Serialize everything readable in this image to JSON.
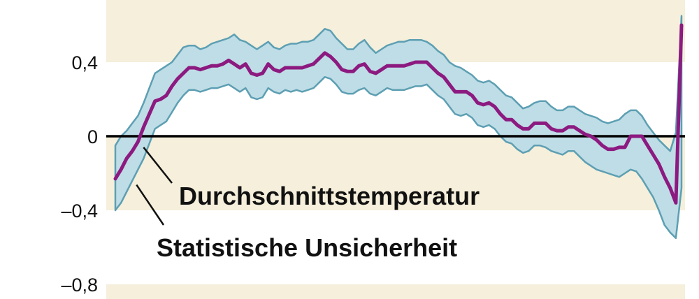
{
  "chart_data": {
    "type": "area",
    "title": "",
    "xlabel": "",
    "ylabel": "",
    "ylim": [
      -0.8,
      0.8
    ],
    "yticks": [
      {
        "value": 0.4,
        "label": "0,4"
      },
      {
        "value": 0,
        "label": "0"
      },
      {
        "value": -0.4,
        "label": "–0,4"
      },
      {
        "value": -0.8,
        "label": "–0,8"
      }
    ],
    "colors": {
      "band_shade": "#f5efdb",
      "uncertainty_fill": "#bfdde6",
      "uncertainty_edge": "#5d9fb3",
      "mean_line": "#8c1a80",
      "zero_line": "#000000"
    },
    "annotations": [
      {
        "id": "mean",
        "text": "Durchschnittstemperatur",
        "points_to": "mean_line"
      },
      {
        "id": "band",
        "text": "Statistische Unsicherheit",
        "points_to": "uncertainty_band"
      }
    ],
    "x": [
      0,
      1,
      2,
      3,
      4,
      5,
      6,
      7,
      8,
      9,
      10,
      11,
      12,
      13,
      14,
      15,
      16,
      17,
      18,
      19,
      20,
      21,
      22,
      23,
      24,
      25,
      26,
      27,
      28,
      29,
      30,
      31,
      32,
      33,
      34,
      35,
      36,
      37,
      38,
      39,
      40,
      41,
      42,
      43,
      44,
      45,
      46,
      47,
      48,
      49,
      50,
      51,
      52,
      53,
      54,
      55,
      56,
      57,
      58,
      59,
      60,
      61,
      62,
      63,
      64,
      65,
      66,
      67,
      68,
      69,
      70,
      71,
      72,
      73,
      74,
      75,
      76,
      77,
      78,
      79,
      80,
      81,
      82,
      83,
      84,
      85,
      86,
      87,
      88,
      89,
      90,
      91,
      92,
      93,
      94,
      95,
      96,
      97,
      98,
      99,
      100
    ],
    "series": [
      {
        "id": "mean",
        "values": [
          -0.23,
          -0.18,
          -0.12,
          -0.08,
          -0.03,
          0.05,
          0.12,
          0.19,
          0.2,
          0.22,
          0.27,
          0.31,
          0.34,
          0.37,
          0.37,
          0.36,
          0.37,
          0.38,
          0.38,
          0.39,
          0.41,
          0.39,
          0.37,
          0.39,
          0.34,
          0.33,
          0.34,
          0.39,
          0.36,
          0.35,
          0.37,
          0.37,
          0.37,
          0.37,
          0.38,
          0.39,
          0.42,
          0.45,
          0.43,
          0.4,
          0.36,
          0.35,
          0.35,
          0.38,
          0.39,
          0.35,
          0.34,
          0.36,
          0.38,
          0.38,
          0.38,
          0.38,
          0.39,
          0.4,
          0.4,
          0.4,
          0.37,
          0.34,
          0.32,
          0.28,
          0.24,
          0.24,
          0.24,
          0.22,
          0.18,
          0.17,
          0.18,
          0.16,
          0.12,
          0.09,
          0.09,
          0.06,
          0.04,
          0.04,
          0.07,
          0.07,
          0.07,
          0.04,
          0.03,
          0.03,
          0.05,
          0.05,
          0.03,
          0.01,
          0.0,
          -0.02,
          -0.05,
          -0.07,
          -0.07,
          -0.06,
          -0.06,
          0.0,
          0.0,
          0.0,
          -0.05,
          -0.1,
          -0.15,
          -0.22,
          -0.28,
          -0.36,
          0.6
        ]
      },
      {
        "id": "upper",
        "values": [
          -0.05,
          0.0,
          0.03,
          0.07,
          0.11,
          0.18,
          0.26,
          0.34,
          0.36,
          0.38,
          0.4,
          0.44,
          0.48,
          0.49,
          0.49,
          0.47,
          0.48,
          0.5,
          0.51,
          0.52,
          0.53,
          0.55,
          0.52,
          0.51,
          0.49,
          0.47,
          0.49,
          0.51,
          0.48,
          0.47,
          0.49,
          0.5,
          0.5,
          0.51,
          0.51,
          0.52,
          0.55,
          0.58,
          0.57,
          0.53,
          0.5,
          0.47,
          0.47,
          0.5,
          0.52,
          0.48,
          0.45,
          0.47,
          0.49,
          0.5,
          0.51,
          0.51,
          0.52,
          0.52,
          0.52,
          0.51,
          0.49,
          0.46,
          0.44,
          0.4,
          0.38,
          0.37,
          0.35,
          0.33,
          0.3,
          0.29,
          0.3,
          0.28,
          0.25,
          0.22,
          0.21,
          0.18,
          0.15,
          0.16,
          0.18,
          0.19,
          0.19,
          0.16,
          0.14,
          0.14,
          0.16,
          0.16,
          0.14,
          0.12,
          0.11,
          0.1,
          0.08,
          0.07,
          0.08,
          0.09,
          0.12,
          0.14,
          0.14,
          0.11,
          0.06,
          0.02,
          -0.02,
          -0.05,
          -0.08,
          0.02,
          0.65
        ]
      },
      {
        "id": "lower",
        "values": [
          -0.4,
          -0.36,
          -0.3,
          -0.24,
          -0.18,
          -0.12,
          -0.04,
          0.04,
          0.06,
          0.08,
          0.13,
          0.18,
          0.22,
          0.25,
          0.25,
          0.24,
          0.25,
          0.26,
          0.26,
          0.27,
          0.28,
          0.26,
          0.24,
          0.26,
          0.21,
          0.2,
          0.21,
          0.26,
          0.24,
          0.23,
          0.25,
          0.24,
          0.25,
          0.24,
          0.25,
          0.26,
          0.29,
          0.32,
          0.31,
          0.28,
          0.24,
          0.23,
          0.23,
          0.25,
          0.26,
          0.23,
          0.22,
          0.24,
          0.26,
          0.25,
          0.25,
          0.25,
          0.26,
          0.27,
          0.27,
          0.28,
          0.25,
          0.22,
          0.2,
          0.16,
          0.12,
          0.11,
          0.12,
          0.1,
          0.06,
          0.05,
          0.06,
          0.04,
          0.0,
          -0.03,
          -0.04,
          -0.07,
          -0.09,
          -0.08,
          -0.05,
          -0.05,
          -0.06,
          -0.08,
          -0.09,
          -0.1,
          -0.08,
          -0.08,
          -0.11,
          -0.14,
          -0.16,
          -0.18,
          -0.19,
          -0.2,
          -0.21,
          -0.22,
          -0.2,
          -0.18,
          -0.19,
          -0.23,
          -0.28,
          -0.33,
          -0.4,
          -0.48,
          -0.52,
          -0.55,
          -0.28
        ]
      }
    ]
  }
}
